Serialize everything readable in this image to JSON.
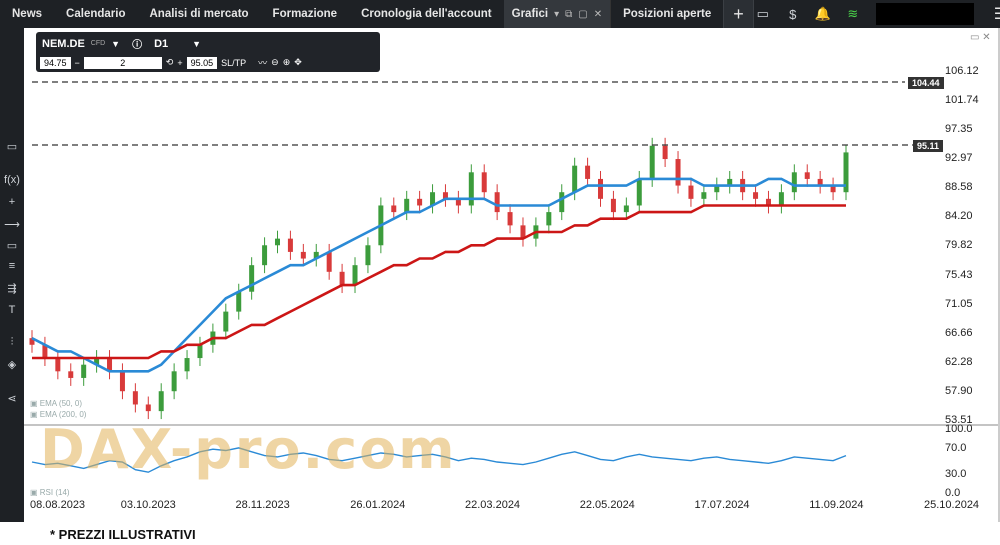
{
  "nav": {
    "tabs": [
      "News",
      "Calendario",
      "Analisi di mercato",
      "Formazione",
      "Cronologia dell'account"
    ],
    "active_tab": "Grafici",
    "positions_tab": "Posizioni aperte",
    "plus": "+"
  },
  "instrument": {
    "symbol": "NEM.DE",
    "type_badge": "CFD",
    "timeframe": "D1",
    "bid": "94.75",
    "quantity": "2",
    "ask": "95.05",
    "sltp": "SL/TP"
  },
  "chart_data": {
    "type": "line",
    "ylim": [
      53.51,
      106.12
    ],
    "y_ticks": [
      "106.12",
      "101.74",
      "97.35",
      "92.97",
      "88.58",
      "84.20",
      "79.82",
      "75.43",
      "71.05",
      "66.66",
      "62.28",
      "57.90",
      "53.51"
    ],
    "x_ticks": [
      "08.08.2023",
      "03.10.2023",
      "28.11.2023",
      "26.01.2024",
      "22.03.2024",
      "22.05.2024",
      "17.07.2024",
      "11.09.2024",
      "25.10.2024"
    ],
    "price_levels": [
      "104.44",
      "95.11"
    ],
    "series": [
      {
        "values": [
          65,
          63,
          61,
          60,
          62,
          63,
          61,
          58,
          56,
          55,
          58,
          61,
          63,
          65,
          67,
          70,
          73,
          77,
          80,
          81,
          79,
          78,
          79,
          76,
          74,
          77,
          80,
          86,
          85,
          87,
          86,
          88,
          87,
          86,
          91,
          88,
          85,
          83,
          81,
          83,
          85,
          88,
          92,
          90,
          87,
          85,
          86,
          90,
          95,
          93,
          89,
          87,
          88,
          89,
          90,
          88,
          87,
          86,
          88,
          91,
          90,
          89,
          88,
          94
        ]
      },
      {
        "values": [
          66,
          65,
          64,
          64,
          63,
          62,
          61,
          61,
          61,
          61,
          62,
          64,
          66,
          68,
          70,
          72,
          73,
          74,
          75,
          76,
          77,
          77,
          78,
          79,
          80,
          81,
          82,
          83,
          84,
          85,
          85,
          86,
          87,
          87,
          87,
          87,
          86,
          86,
          86,
          86,
          86,
          87,
          88,
          89,
          89,
          89,
          89,
          90,
          90,
          90,
          90,
          90,
          89,
          89,
          89,
          89,
          89,
          90,
          90,
          89,
          89,
          89,
          89,
          89
        ]
      },
      {
        "values": [
          63,
          63,
          63,
          63,
          63,
          63,
          63,
          63,
          63,
          63,
          64,
          64,
          65,
          65,
          66,
          66,
          67,
          68,
          68,
          69,
          70,
          71,
          72,
          73,
          74,
          74,
          75,
          76,
          77,
          77,
          78,
          78,
          79,
          79,
          80,
          80,
          81,
          81,
          81,
          82,
          82,
          82,
          83,
          83,
          84,
          84,
          84,
          85,
          85,
          85,
          85,
          85,
          86,
          86,
          86,
          86,
          86,
          86,
          86,
          86,
          86,
          86,
          86,
          86
        ]
      }
    ],
    "indicator": {
      "ylim": [
        0.0,
        100.0
      ],
      "y_ticks": [
        "100.0",
        "70.0",
        "30.0",
        "0.0"
      ],
      "values": [
        50,
        46,
        48,
        44,
        40,
        46,
        52,
        50,
        38,
        34,
        44,
        52,
        58,
        66,
        70,
        68,
        72,
        66,
        60,
        58,
        62,
        64,
        60,
        54,
        52,
        56,
        60,
        64,
        62,
        58,
        60,
        62,
        58,
        52,
        56,
        54,
        50,
        48,
        46,
        50,
        56,
        62,
        66,
        60,
        54,
        52,
        58,
        62,
        58,
        56,
        54,
        52,
        56,
        58,
        54,
        52,
        50,
        48,
        52,
        58,
        56,
        54,
        52,
        60
      ]
    }
  },
  "footer_text": "* PREZZI ILLUSTRATIVI",
  "watermark_text": "DAX-pro.com",
  "colors": {
    "up": "#3c9c3c",
    "down": "#d83a3a",
    "ema50": "#2a8ad6",
    "ema200": "#cc1616",
    "rsi": "#2a8ad6"
  }
}
